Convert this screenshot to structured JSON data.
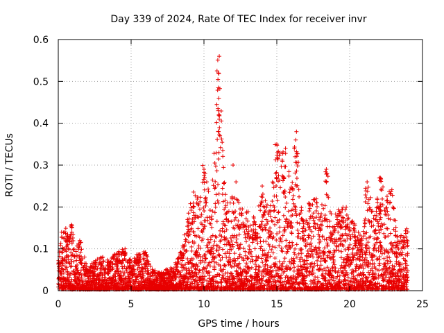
{
  "chart_data": {
    "type": "scatter",
    "title": "Day 339 of 2024, Rate Of TEC Index for receiver invr",
    "xlabel": "GPS time / hours",
    "ylabel": "ROTI / TECUs",
    "xlim": [
      0,
      25
    ],
    "ylim": [
      0,
      0.6
    ],
    "xticks": [
      "0",
      "5",
      "10",
      "15",
      "20",
      "25"
    ],
    "yticks": [
      "0",
      "0.1",
      "0.2",
      "0.3",
      "0.4",
      "0.5",
      "0.6"
    ],
    "grid": true,
    "marker": "plus",
    "color": "#e80000",
    "series": [
      {
        "name": "ROTI",
        "envelope": [
          {
            "x": 0.0,
            "y": 0.07
          },
          {
            "x": 0.3,
            "y": 0.14
          },
          {
            "x": 0.6,
            "y": 0.15
          },
          {
            "x": 0.9,
            "y": 0.16
          },
          {
            "x": 1.2,
            "y": 0.1
          },
          {
            "x": 1.5,
            "y": 0.12
          },
          {
            "x": 2.0,
            "y": 0.05
          },
          {
            "x": 2.5,
            "y": 0.07
          },
          {
            "x": 3.0,
            "y": 0.08
          },
          {
            "x": 3.5,
            "y": 0.07
          },
          {
            "x": 4.0,
            "y": 0.09
          },
          {
            "x": 4.5,
            "y": 0.1
          },
          {
            "x": 5.0,
            "y": 0.07
          },
          {
            "x": 5.5,
            "y": 0.09
          },
          {
            "x": 6.0,
            "y": 0.09
          },
          {
            "x": 6.5,
            "y": 0.05
          },
          {
            "x": 7.0,
            "y": 0.04
          },
          {
            "x": 7.5,
            "y": 0.05
          },
          {
            "x": 8.0,
            "y": 0.06
          },
          {
            "x": 8.5,
            "y": 0.1
          },
          {
            "x": 9.0,
            "y": 0.2
          },
          {
            "x": 9.3,
            "y": 0.24
          },
          {
            "x": 9.6,
            "y": 0.22
          },
          {
            "x": 10.0,
            "y": 0.3
          },
          {
            "x": 10.5,
            "y": 0.2
          },
          {
            "x": 11.0,
            "y": 0.56
          },
          {
            "x": 11.5,
            "y": 0.22
          },
          {
            "x": 12.0,
            "y": 0.26
          },
          {
            "x": 12.5,
            "y": 0.2
          },
          {
            "x": 13.0,
            "y": 0.19
          },
          {
            "x": 13.5,
            "y": 0.17
          },
          {
            "x": 14.0,
            "y": 0.25
          },
          {
            "x": 14.5,
            "y": 0.2
          },
          {
            "x": 15.0,
            "y": 0.35
          },
          {
            "x": 15.5,
            "y": 0.34
          },
          {
            "x": 16.0,
            "y": 0.26
          },
          {
            "x": 16.3,
            "y": 0.38
          },
          {
            "x": 16.8,
            "y": 0.17
          },
          {
            "x": 17.2,
            "y": 0.21
          },
          {
            "x": 17.7,
            "y": 0.22
          },
          {
            "x": 18.0,
            "y": 0.18
          },
          {
            "x": 18.4,
            "y": 0.29
          },
          {
            "x": 18.8,
            "y": 0.16
          },
          {
            "x": 19.3,
            "y": 0.21
          },
          {
            "x": 19.8,
            "y": 0.2
          },
          {
            "x": 20.3,
            "y": 0.16
          },
          {
            "x": 20.8,
            "y": 0.13
          },
          {
            "x": 21.2,
            "y": 0.26
          },
          {
            "x": 21.7,
            "y": 0.2
          },
          {
            "x": 22.1,
            "y": 0.27
          },
          {
            "x": 22.5,
            "y": 0.23
          },
          {
            "x": 22.9,
            "y": 0.24
          },
          {
            "x": 23.3,
            "y": 0.12
          },
          {
            "x": 23.7,
            "y": 0.14
          },
          {
            "x": 24.0,
            "y": 0.15
          }
        ],
        "outliers": [
          {
            "x": 11.05,
            "y": 0.56
          },
          {
            "x": 11.0,
            "y": 0.52
          },
          {
            "x": 11.02,
            "y": 0.46
          },
          {
            "x": 10.98,
            "y": 0.43
          },
          {
            "x": 11.0,
            "y": 0.38
          },
          {
            "x": 11.03,
            "y": 0.33
          },
          {
            "x": 11.1,
            "y": 0.37
          },
          {
            "x": 16.35,
            "y": 0.38
          },
          {
            "x": 16.3,
            "y": 0.36
          },
          {
            "x": 16.25,
            "y": 0.32
          },
          {
            "x": 15.0,
            "y": 0.35
          },
          {
            "x": 15.05,
            "y": 0.33
          },
          {
            "x": 15.6,
            "y": 0.34
          },
          {
            "x": 18.4,
            "y": 0.29
          },
          {
            "x": 18.45,
            "y": 0.28
          },
          {
            "x": 22.1,
            "y": 0.27
          },
          {
            "x": 21.2,
            "y": 0.26
          },
          {
            "x": 12.0,
            "y": 0.3
          },
          {
            "x": 10.0,
            "y": 0.29
          },
          {
            "x": 10.05,
            "y": 0.27
          },
          {
            "x": 12.2,
            "y": 0.26
          },
          {
            "x": 15.5,
            "y": 0.27
          },
          {
            "x": 14.0,
            "y": 0.25
          }
        ]
      }
    ]
  }
}
